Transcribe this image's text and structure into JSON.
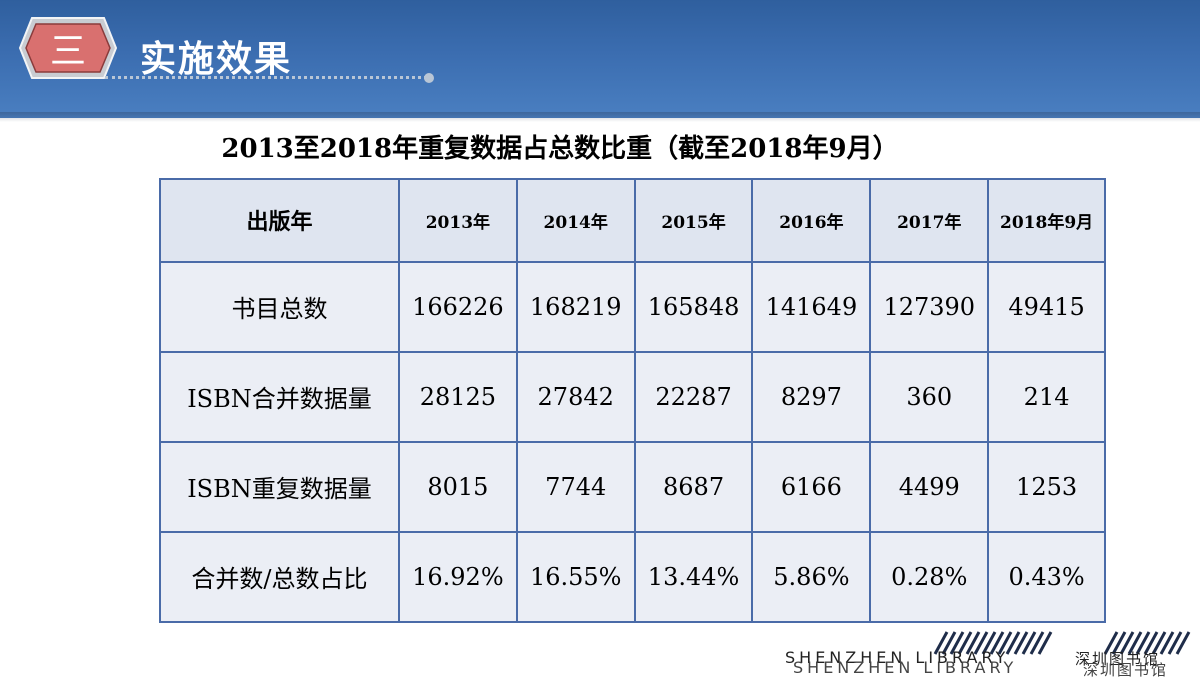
{
  "header": {
    "section_number": "三",
    "section_title": "实施效果",
    "colors": {
      "header_blue": "#3b6db0",
      "badge_red": "#d9706f"
    }
  },
  "table_title": "2013至2018年重复数据占总数比重（截至2018年9月）",
  "table": {
    "columns": [
      "出版年",
      "2013年",
      "2014年",
      "2015年",
      "2016年",
      "2017年",
      "2018年9月"
    ],
    "rows": [
      {
        "label": "书目总数",
        "values": [
          "166226",
          "168219",
          "165848",
          "141649",
          "127390",
          "49415"
        ]
      },
      {
        "label": "ISBN合并数据量",
        "values": [
          "28125",
          "27842",
          "22287",
          "8297",
          "360",
          "214"
        ]
      },
      {
        "label": "ISBN重复数据量",
        "values": [
          "8015",
          "7744",
          "8687",
          "6166",
          "4499",
          "1253"
        ]
      },
      {
        "label": "合并数/总数占比",
        "values": [
          "16.92%",
          "16.55%",
          "13.44%",
          "5.86%",
          "0.28%",
          "0.43%"
        ]
      }
    ]
  },
  "footer": {
    "logo_en": "SHENZHEN LIBRARY",
    "logo_cn": "深圳图书馆"
  }
}
